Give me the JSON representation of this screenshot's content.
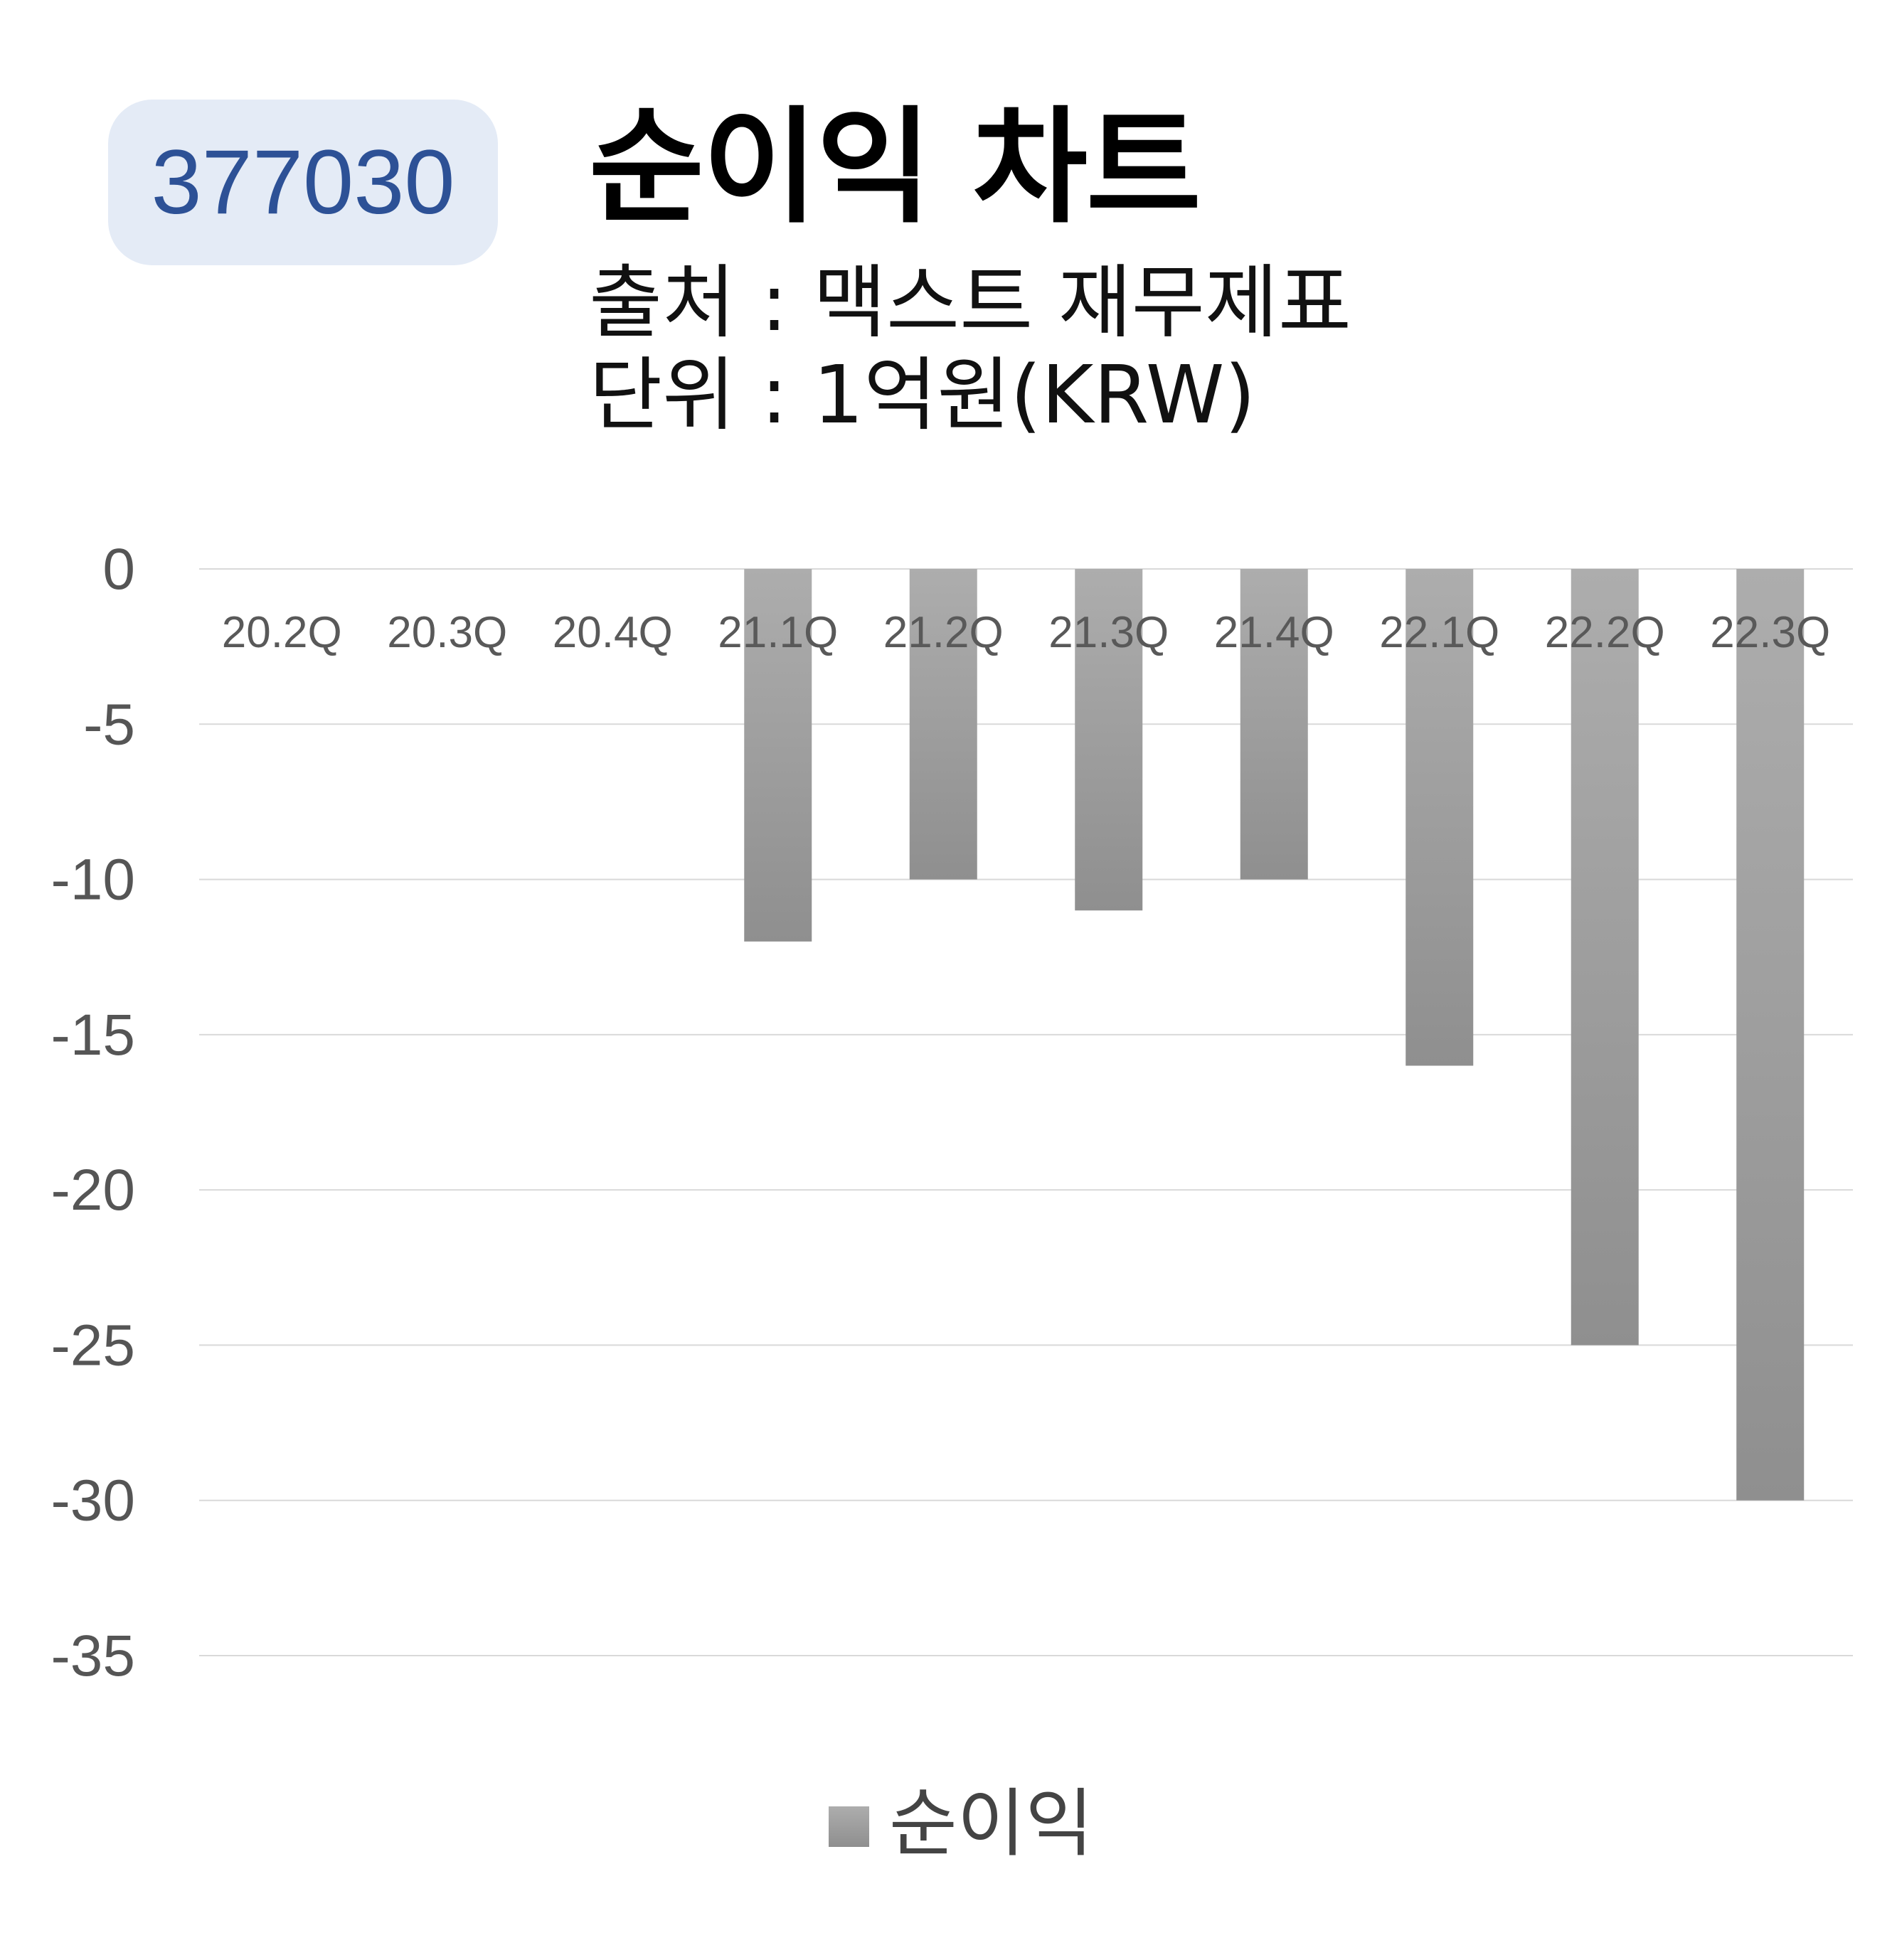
{
  "badge": {
    "code": "377030"
  },
  "header": {
    "title": "순이익 차트",
    "source_line": "출처 : 맥스트 재무제표",
    "unit_line": "단위 : 1억원(KRW)"
  },
  "colors": {
    "badge_bg": "#e4ebf6",
    "badge_text": "#2d5196",
    "bar_top": "#adadad",
    "bar_bottom": "#8f8f8f",
    "gridline": "#d9d9d9"
  },
  "chart_data": {
    "type": "bar",
    "categories": [
      "20.2Q",
      "20.3Q",
      "20.4Q",
      "21.1Q",
      "21.2Q",
      "21.3Q",
      "21.4Q",
      "22.1Q",
      "22.2Q",
      "22.3Q"
    ],
    "series": [
      {
        "name": "순이익",
        "values": [
          null,
          null,
          null,
          -12,
          -10,
          -11,
          -10,
          -16,
          -25,
          -30
        ]
      }
    ],
    "ylim": [
      -35,
      0
    ],
    "yticks": [
      "0",
      "-5",
      "-10",
      "-15",
      "-20",
      "-25",
      "-30",
      "-35"
    ],
    "ytick_values": [
      0,
      -5,
      -10,
      -15,
      -20,
      -25,
      -30,
      -35
    ],
    "grid": true,
    "legend_position": "bottom"
  }
}
